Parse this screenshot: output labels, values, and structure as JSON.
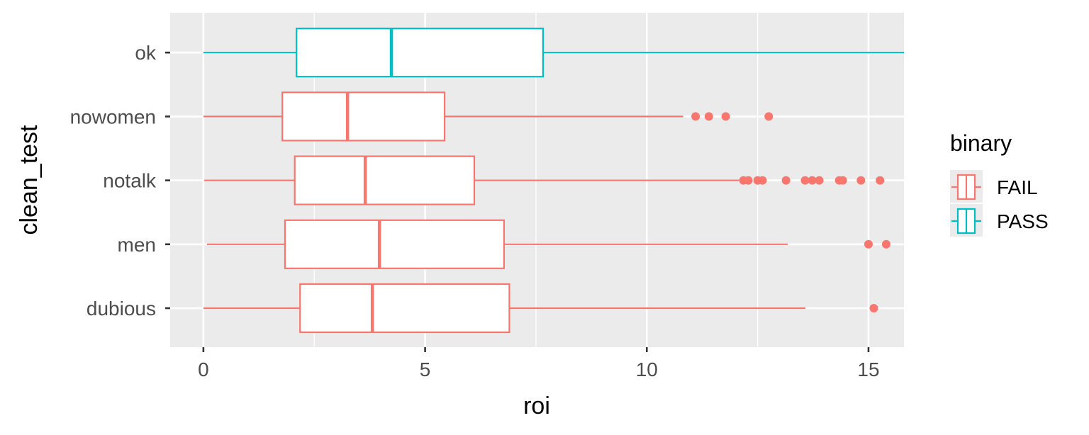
{
  "chart_data": {
    "type": "boxplot",
    "orientation": "horizontal",
    "xlabel": "roi",
    "ylabel": "clean_test",
    "xlim": [
      -0.75,
      15.8
    ],
    "xticks": [
      0,
      5,
      10,
      15
    ],
    "xtick_labels": [
      "0",
      "5",
      "10",
      "15"
    ],
    "grid": true,
    "legend": {
      "title": "binary",
      "position": "right",
      "entries": [
        {
          "label": "FAIL",
          "color": "#F8766D"
        },
        {
          "label": "PASS",
          "color": "#00BFC4"
        }
      ]
    },
    "categories": [
      "dubious",
      "men",
      "notalk",
      "nowomen",
      "ok"
    ],
    "boxes": [
      {
        "category": "dubious",
        "group": "FAIL",
        "whisker_low": 0,
        "q1": 2.18,
        "median": 3.81,
        "q3": 6.9,
        "whisker_high": 13.58,
        "outliers": [
          15.12
        ]
      },
      {
        "category": "men",
        "group": "FAIL",
        "whisker_low": 0.08,
        "q1": 1.84,
        "median": 3.97,
        "q3": 6.78,
        "whisker_high": 13.18,
        "outliers": [
          15.0,
          15.4
        ]
      },
      {
        "category": "notalk",
        "group": "FAIL",
        "whisker_low": 0.02,
        "q1": 2.06,
        "median": 3.65,
        "q3": 6.11,
        "whisker_high": 12.08,
        "outliers": [
          12.18,
          12.29,
          12.5,
          12.61,
          13.14,
          13.57,
          13.73,
          13.89,
          14.34,
          14.42,
          14.83,
          15.26
        ]
      },
      {
        "category": "nowomen",
        "group": "FAIL",
        "whisker_low": 0,
        "q1": 1.78,
        "median": 3.25,
        "q3": 5.44,
        "whisker_high": 10.82,
        "outliers": [
          11.1,
          11.4,
          11.78,
          12.75
        ]
      },
      {
        "category": "ok",
        "group": "PASS",
        "whisker_low": 0,
        "q1": 2.1,
        "median": 4.24,
        "q3": 7.66,
        "whisker_high": 16.5,
        "outliers": []
      }
    ]
  }
}
